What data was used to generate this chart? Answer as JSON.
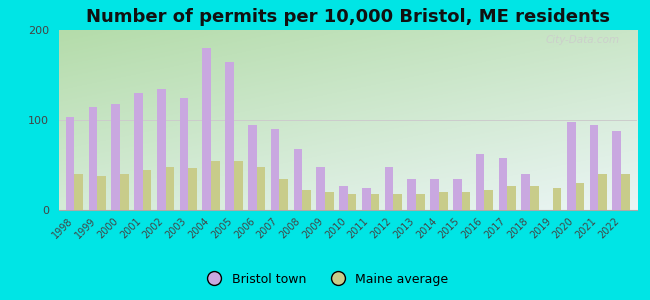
{
  "title": "Number of permits per 10,000 Bristol, ME residents",
  "years": [
    1998,
    1999,
    2000,
    2001,
    2002,
    2003,
    2004,
    2005,
    2006,
    2007,
    2008,
    2009,
    2010,
    2011,
    2012,
    2013,
    2014,
    2015,
    2016,
    2017,
    2018,
    2019,
    2020,
    2021,
    2022
  ],
  "bristol": [
    103,
    115,
    118,
    130,
    135,
    125,
    180,
    165,
    95,
    90,
    68,
    48,
    27,
    25,
    48,
    35,
    35,
    35,
    62,
    58,
    40,
    0,
    98,
    95,
    88
  ],
  "maine": [
    40,
    38,
    40,
    45,
    48,
    47,
    55,
    55,
    48,
    35,
    22,
    20,
    18,
    18,
    18,
    18,
    20,
    20,
    22,
    27,
    27,
    25,
    30,
    40,
    40
  ],
  "bristol_color": "#c9a8e0",
  "maine_color": "#c8cc8a",
  "bg_outer": "#00e5e5",
  "ylim": [
    0,
    200
  ],
  "yticks": [
    0,
    100,
    200
  ],
  "title_fontsize": 13,
  "watermark": "City-Data.com"
}
